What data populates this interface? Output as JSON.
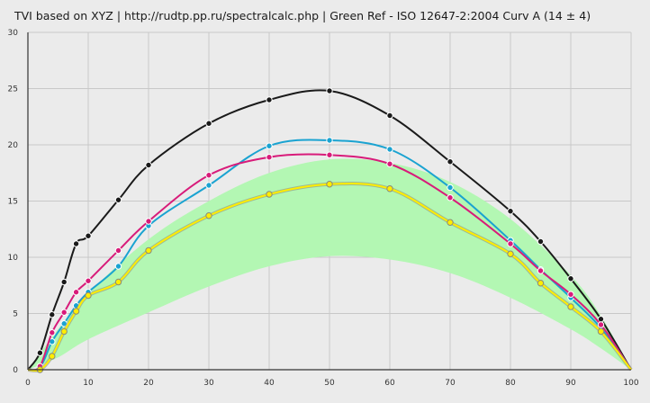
{
  "chart_data": {
    "type": "line",
    "title": "TVI based on XYZ  |  http://rudtp.pp.ru/spectralcalc.php  |  Green Ref - ISO 12647-2:2004 Curv A (14 ± 4)",
    "xlabel": "",
    "ylabel": "",
    "xlim": [
      0,
      100
    ],
    "ylim": [
      0,
      30
    ],
    "x_ticks": [
      "0",
      "10",
      "20",
      "30",
      "40",
      "50",
      "60",
      "70",
      "80",
      "90",
      "100"
    ],
    "y_ticks": [
      "0",
      "5",
      "10",
      "15",
      "20",
      "25",
      "30"
    ],
    "grid": true,
    "legend": "none",
    "reference_band": {
      "name": "ISO 12647-2:2004 Curv A (14 ± 4)",
      "color": "#b3f7b3",
      "x": [
        0,
        5,
        10,
        20,
        30,
        40,
        50,
        60,
        70,
        80,
        90,
        95,
        100
      ],
      "lower": [
        0,
        1.1,
        2.7,
        5.1,
        7.4,
        9.2,
        10.1,
        9.8,
        8.6,
        6.4,
        3.6,
        1.9,
        0
      ],
      "upper": [
        0,
        3.6,
        6.8,
        11.6,
        15.0,
        17.5,
        18.7,
        18.4,
        16.7,
        13.4,
        8.4,
        4.8,
        0
      ]
    },
    "series": [
      {
        "color": "#1a1a1a",
        "x": [
          0,
          2,
          4,
          6,
          8,
          10,
          15,
          20,
          30,
          40,
          50,
          60,
          70,
          80,
          85,
          90,
          95,
          100
        ],
        "values": [
          0,
          1.5,
          4.9,
          7.8,
          11.2,
          11.9,
          15.1,
          18.2,
          21.9,
          24.0,
          24.8,
          22.6,
          18.5,
          14.1,
          11.4,
          8.1,
          4.5,
          0
        ]
      },
      {
        "color": "#1aa3d1",
        "x": [
          0,
          2,
          4,
          6,
          8,
          10,
          15,
          20,
          30,
          40,
          50,
          60,
          70,
          80,
          85,
          90,
          95,
          100
        ],
        "values": [
          0,
          0.2,
          2.5,
          4.1,
          5.7,
          6.9,
          9.2,
          12.8,
          16.4,
          19.9,
          20.4,
          19.6,
          16.2,
          11.5,
          8.9,
          6.4,
          3.7,
          0
        ]
      },
      {
        "color": "#d81b7a",
        "x": [
          0,
          2,
          4,
          6,
          8,
          10,
          15,
          20,
          30,
          40,
          50,
          60,
          70,
          80,
          85,
          90,
          95,
          100
        ],
        "values": [
          0,
          0.3,
          3.3,
          5.1,
          6.9,
          7.9,
          10.6,
          13.2,
          17.3,
          18.9,
          19.1,
          18.3,
          15.3,
          11.2,
          8.8,
          6.7,
          4.0,
          0
        ]
      },
      {
        "color": "#ffee00",
        "x": [
          0,
          2,
          4,
          6,
          8,
          10,
          15,
          20,
          30,
          40,
          50,
          60,
          70,
          80,
          85,
          90,
          95,
          100
        ],
        "values": [
          0,
          0,
          1.2,
          3.4,
          5.2,
          6.6,
          7.8,
          10.6,
          13.7,
          15.6,
          16.5,
          16.1,
          13.1,
          10.3,
          7.7,
          5.6,
          3.4,
          0
        ]
      }
    ]
  }
}
